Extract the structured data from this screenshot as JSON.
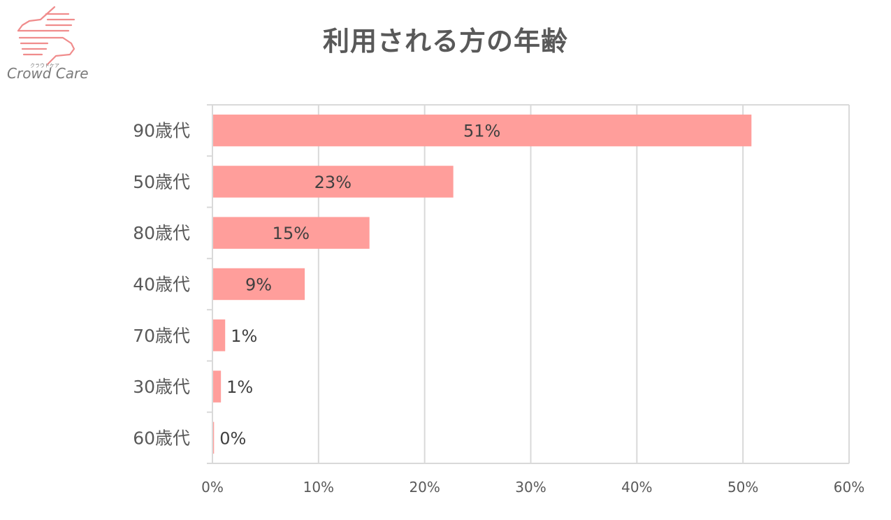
{
  "logo": {
    "text": "Crowd Care",
    "kana": "クラウドケア",
    "color": "#F08C8C"
  },
  "chart_data": {
    "type": "bar",
    "orientation": "horizontal",
    "title": "利用される方の年齢",
    "categories": [
      "90歳代",
      "50歳代",
      "80歳代",
      "40歳代",
      "70歳代",
      "30歳代",
      "60歳代"
    ],
    "values": [
      50.8,
      22.7,
      14.8,
      8.7,
      1.2,
      0.8,
      0.15
    ],
    "data_labels": [
      "51%",
      "23%",
      "15%",
      "9%",
      "1%",
      "1%",
      "0%"
    ],
    "xlim": [
      0,
      60
    ],
    "xticks": [
      0,
      10,
      20,
      30,
      40,
      50,
      60
    ],
    "xtick_labels": [
      "0%",
      "10%",
      "20%",
      "30%",
      "40%",
      "50%",
      "60%"
    ],
    "grid": true,
    "legend": "none",
    "bar_color": "#FF9E9B"
  }
}
